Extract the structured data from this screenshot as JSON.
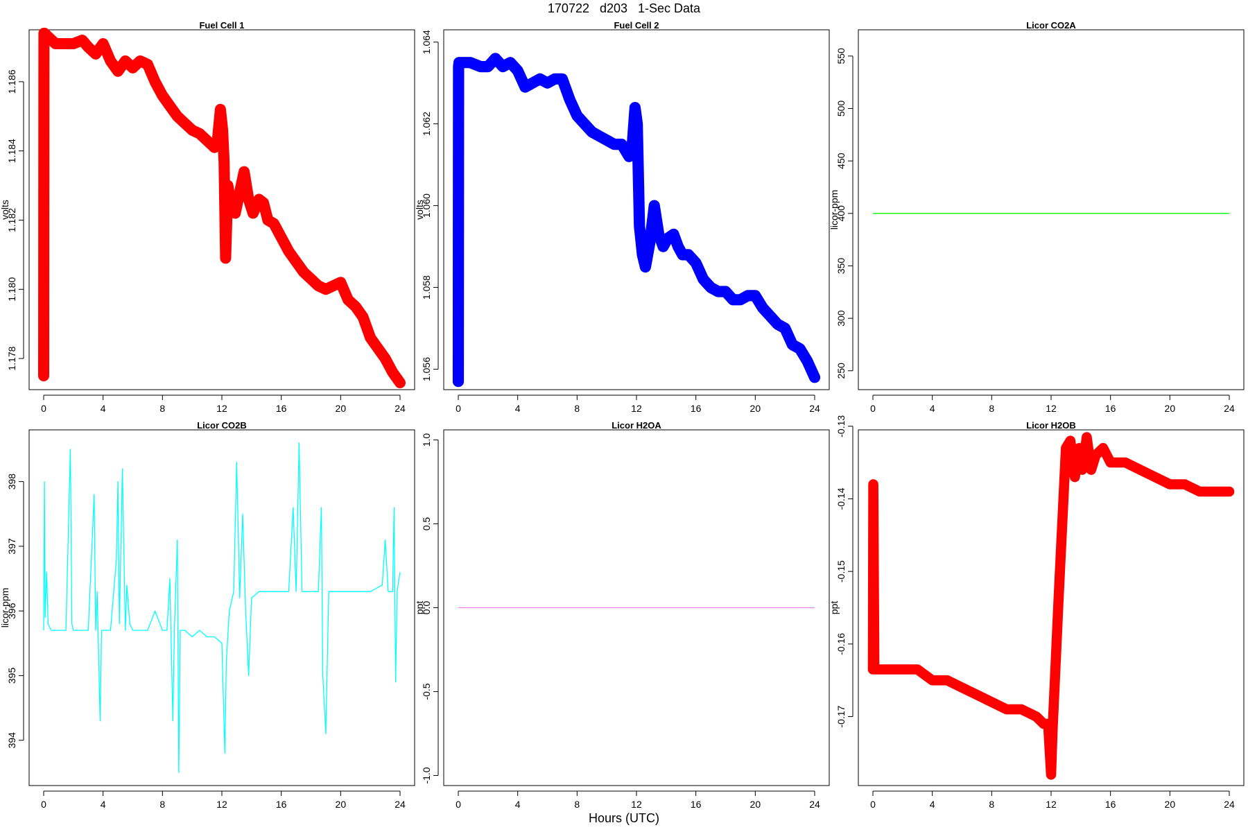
{
  "figure": {
    "title": "170722   d203   1-Sec Data",
    "xlabel": "Hours (UTC)"
  },
  "chart_data": [
    {
      "type": "line",
      "title": "Fuel Cell 1",
      "ylabel": "volts",
      "xlabel": "",
      "xlim": [
        0,
        24
      ],
      "ylim": [
        1.1771,
        1.1875
      ],
      "xticks": [
        0,
        4,
        8,
        12,
        16,
        20,
        24
      ],
      "yticks": [
        1.178,
        1.18,
        1.182,
        1.184,
        1.186
      ],
      "ytick_labels": [
        "1.178",
        "1.180",
        "1.182",
        "1.184",
        "1.186"
      ],
      "grid": false,
      "color": "#ff0000",
      "band": 0.00014,
      "series": [
        {
          "x": [
            0.0,
            0.02,
            0.05,
            0.3,
            0.8,
            1.5,
            2.0,
            2.6,
            3.0,
            3.5,
            4.0,
            4.5,
            5.0,
            5.5,
            6.0,
            6.5,
            7.0,
            7.5,
            8.0,
            8.5,
            9.0,
            9.5,
            10.0,
            10.5,
            11.0,
            11.5,
            11.7,
            11.9,
            12.05,
            12.15,
            12.25,
            12.4,
            12.6,
            12.9,
            13.2,
            13.5,
            13.8,
            14.1,
            14.5,
            14.8,
            15.1,
            15.5,
            16.0,
            16.5,
            17.0,
            17.5,
            18.0,
            18.5,
            19.0,
            19.5,
            20.0,
            20.5,
            21.0,
            21.5,
            22.0,
            22.5,
            23.0,
            23.5,
            24.0
          ],
          "y": [
            1.1775,
            1.1874,
            1.1874,
            1.1873,
            1.1871,
            1.1871,
            1.1871,
            1.1872,
            1.187,
            1.1868,
            1.1871,
            1.1866,
            1.1863,
            1.1866,
            1.1864,
            1.1866,
            1.1865,
            1.186,
            1.1856,
            1.1853,
            1.185,
            1.1848,
            1.1846,
            1.1845,
            1.1843,
            1.1841,
            1.1843,
            1.1852,
            1.1846,
            1.1837,
            1.1809,
            1.183,
            1.1825,
            1.1822,
            1.1828,
            1.1834,
            1.1826,
            1.1822,
            1.1826,
            1.1825,
            1.182,
            1.1819,
            1.1815,
            1.1811,
            1.1808,
            1.1805,
            1.1803,
            1.1801,
            1.18,
            1.1801,
            1.1802,
            1.1797,
            1.1795,
            1.1792,
            1.1786,
            1.1783,
            1.178,
            1.1776,
            1.1773
          ]
        }
      ]
    },
    {
      "type": "line",
      "title": "Fuel Cell 2",
      "ylabel": "volts",
      "xlabel": "",
      "xlim": [
        0,
        24
      ],
      "ylim": [
        1.0555,
        1.0643
      ],
      "xticks": [
        0,
        4,
        8,
        12,
        16,
        20,
        24
      ],
      "yticks": [
        1.056,
        1.058,
        1.06,
        1.062,
        1.064
      ],
      "ytick_labels": [
        "1.056",
        "1.058",
        "1.060",
        "1.062",
        "1.064"
      ],
      "grid": false,
      "color": "#0000ff",
      "band": 0.00012,
      "series": [
        {
          "x": [
            0.0,
            0.02,
            0.05,
            0.3,
            0.8,
            1.5,
            2.0,
            2.5,
            3.0,
            3.5,
            4.0,
            4.5,
            5.0,
            5.5,
            6.0,
            6.5,
            7.0,
            7.5,
            8.0,
            8.5,
            9.0,
            9.5,
            10.0,
            10.5,
            11.0,
            11.5,
            11.7,
            11.9,
            12.05,
            12.2,
            12.4,
            12.6,
            12.9,
            13.2,
            13.5,
            13.8,
            14.1,
            14.5,
            14.8,
            15.1,
            15.5,
            16.0,
            16.5,
            17.0,
            17.5,
            18.0,
            18.5,
            19.0,
            19.5,
            20.0,
            20.5,
            21.0,
            21.5,
            22.0,
            22.5,
            23.0,
            23.5,
            24.0
          ],
          "y": [
            1.0557,
            1.0634,
            1.0635,
            1.0635,
            1.0635,
            1.0634,
            1.0634,
            1.0636,
            1.0634,
            1.0635,
            1.0633,
            1.0629,
            1.063,
            1.0631,
            1.063,
            1.0631,
            1.0631,
            1.0626,
            1.0622,
            1.062,
            1.0618,
            1.0617,
            1.0616,
            1.0615,
            1.0615,
            1.0612,
            1.0614,
            1.0624,
            1.062,
            1.0595,
            1.0588,
            1.0585,
            1.0591,
            1.06,
            1.0593,
            1.059,
            1.0592,
            1.0593,
            1.059,
            1.0588,
            1.0588,
            1.0586,
            1.0582,
            1.058,
            1.0579,
            1.0579,
            1.0577,
            1.0577,
            1.0578,
            1.0578,
            1.0575,
            1.0573,
            1.0571,
            1.057,
            1.0566,
            1.0565,
            1.0562,
            1.0558
          ]
        }
      ]
    },
    {
      "type": "line",
      "title": "Licor CO2A",
      "ylabel": "licor-ppm",
      "xlabel": "",
      "xlim": [
        0,
        24
      ],
      "ylim": [
        232,
        575
      ],
      "xticks": [
        0,
        4,
        8,
        12,
        16,
        20,
        24
      ],
      "yticks": [
        250,
        300,
        350,
        400,
        450,
        500,
        550
      ],
      "ytick_labels": [
        "250",
        "300",
        "350",
        "400",
        "450",
        "500",
        "550"
      ],
      "grid": false,
      "color": "#00ff00",
      "band": 0,
      "series": [
        {
          "x": [
            0,
            24
          ],
          "y": [
            400,
            400
          ]
        }
      ]
    },
    {
      "type": "line",
      "title": "Licor CO2B",
      "ylabel": "licor-ppm",
      "xlabel": "",
      "xlim": [
        0,
        24
      ],
      "ylim": [
        393.3,
        398.8
      ],
      "xticks": [
        0,
        4,
        8,
        12,
        16,
        20,
        24
      ],
      "yticks": [
        394,
        395,
        396,
        397,
        398
      ],
      "ytick_labels": [
        "394",
        "395",
        "396",
        "397",
        "398"
      ],
      "grid": false,
      "color": "#00ffff",
      "band": 0,
      "series": [
        {
          "x": [
            0.0,
            0.05,
            0.1,
            0.2,
            0.3,
            0.5,
            1.0,
            1.5,
            1.8,
            1.9,
            2.0,
            2.5,
            3.0,
            3.4,
            3.5,
            3.6,
            3.8,
            3.9,
            4.0,
            4.5,
            4.9,
            5.0,
            5.1,
            5.3,
            5.5,
            5.6,
            5.8,
            6.0,
            6.5,
            7.0,
            7.5,
            8.0,
            8.3,
            8.5,
            8.7,
            8.8,
            9.0,
            9.1,
            9.2,
            9.3,
            9.5,
            10.0,
            10.5,
            11.0,
            11.5,
            12.0,
            12.2,
            12.3,
            12.5,
            12.8,
            13.0,
            13.2,
            13.4,
            13.6,
            13.8,
            14.0,
            14.5,
            15.0,
            15.5,
            16.0,
            16.5,
            16.8,
            17.0,
            17.2,
            17.4,
            18.0,
            18.5,
            18.7,
            18.8,
            19.0,
            19.2,
            19.5,
            20.0,
            21.0,
            22.0,
            22.8,
            23.0,
            23.2,
            23.5,
            23.6,
            23.7,
            23.8,
            24.0
          ],
          "y": [
            395.7,
            398.0,
            395.9,
            396.6,
            395.8,
            395.7,
            395.7,
            395.7,
            398.5,
            395.8,
            395.7,
            395.7,
            395.7,
            397.8,
            395.7,
            396.3,
            394.3,
            395.7,
            395.7,
            395.7,
            396.8,
            398.0,
            395.8,
            398.2,
            395.7,
            396.4,
            395.8,
            395.7,
            395.7,
            395.7,
            396.0,
            395.7,
            395.7,
            396.5,
            394.3,
            395.7,
            397.1,
            393.5,
            395.7,
            395.7,
            395.7,
            395.6,
            395.7,
            395.6,
            395.6,
            395.5,
            393.8,
            395.2,
            396.0,
            396.3,
            398.3,
            396.2,
            397.5,
            396.0,
            395.0,
            396.2,
            396.3,
            396.3,
            396.3,
            396.3,
            396.3,
            397.6,
            396.3,
            398.6,
            396.3,
            396.3,
            396.3,
            397.6,
            395.0,
            394.1,
            396.3,
            396.3,
            396.3,
            396.3,
            396.3,
            396.4,
            397.1,
            396.3,
            396.3,
            397.6,
            394.9,
            396.3,
            396.6
          ]
        }
      ]
    },
    {
      "type": "line",
      "title": "Licor H2OA",
      "ylabel": "ppt",
      "xlabel": "",
      "xlim": [
        0,
        24
      ],
      "ylim": [
        -1.06,
        1.06
      ],
      "xticks": [
        0,
        4,
        8,
        12,
        16,
        20,
        24
      ],
      "yticks": [
        -1,
        -0.5,
        0,
        0.5,
        1
      ],
      "ytick_labels": [
        "-1.0",
        "-0.5",
        "0.0",
        "0.5",
        "1.0"
      ],
      "grid": false,
      "color": "#ee82ee",
      "band": 0,
      "series": [
        {
          "x": [
            0,
            24
          ],
          "y": [
            0,
            0
          ]
        }
      ]
    },
    {
      "type": "line",
      "title": "Licor H2OB",
      "ylabel": "ppt",
      "xlabel": "",
      "xlim": [
        0,
        24
      ],
      "ylim": [
        -0.1795,
        -0.1305
      ],
      "xticks": [
        0,
        4,
        8,
        12,
        16,
        20,
        24
      ],
      "yticks": [
        -0.17,
        -0.16,
        -0.15,
        -0.14,
        -0.13
      ],
      "ytick_labels": [
        "-0.17",
        "-0.16",
        "-0.15",
        "-0.14",
        "-0.13"
      ],
      "grid": false,
      "color": "#ff0000",
      "band": 0.0006,
      "series": [
        {
          "x": [
            0.0,
            0.03,
            0.1,
            0.3,
            1.0,
            2.0,
            3.0,
            4.0,
            5.0,
            6.0,
            7.0,
            8.0,
            9.0,
            10.0,
            11.0,
            11.5,
            11.8,
            12.0,
            12.1,
            12.5,
            13.0,
            13.3,
            13.6,
            13.9,
            14.1,
            14.4,
            14.7,
            15.0,
            15.5,
            16.0,
            17.0,
            18.0,
            19.0,
            20.0,
            21.0,
            22.0,
            23.0,
            24.0
          ],
          "y": [
            -0.1635,
            -0.138,
            -0.1635,
            -0.1635,
            -0.1635,
            -0.1635,
            -0.1635,
            -0.165,
            -0.165,
            -0.166,
            -0.167,
            -0.168,
            -0.169,
            -0.169,
            -0.17,
            -0.171,
            -0.171,
            -0.178,
            -0.172,
            -0.154,
            -0.133,
            -0.132,
            -0.137,
            -0.133,
            -0.136,
            -0.1315,
            -0.136,
            -0.134,
            -0.133,
            -0.135,
            -0.135,
            -0.136,
            -0.137,
            -0.138,
            -0.138,
            -0.139,
            -0.139,
            -0.139
          ]
        }
      ]
    }
  ]
}
